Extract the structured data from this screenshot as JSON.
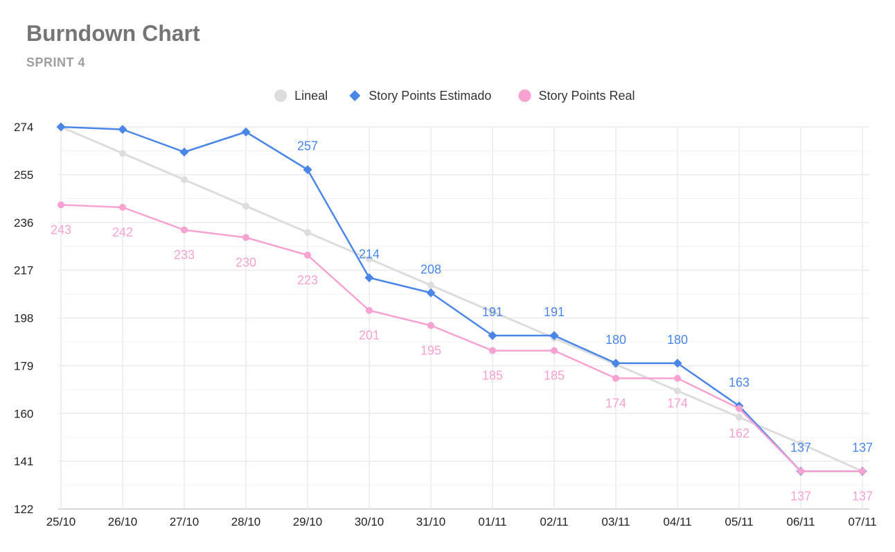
{
  "header": {
    "title": "Burndown Chart",
    "subtitle": "SPRINT 4"
  },
  "chart_data": {
    "type": "line",
    "title": "Burndown Chart",
    "subtitle": "SPRINT 4",
    "xlabel": "",
    "ylabel": "",
    "categories": [
      "25/10",
      "26/10",
      "27/10",
      "28/10",
      "29/10",
      "30/10",
      "31/10",
      "01/11",
      "02/11",
      "03/11",
      "04/11",
      "05/11",
      "06/11",
      "07/11"
    ],
    "ylim": [
      122,
      274
    ],
    "yticks": [
      122,
      141,
      160,
      179,
      198,
      217,
      236,
      255,
      274
    ],
    "grid": true,
    "legend": "top-center",
    "series": [
      {
        "name": "Lineal",
        "color": "#dddddd",
        "marker": "circle",
        "values": [
          274,
          263.5,
          253,
          242.5,
          232,
          221.5,
          211,
          200.5,
          190,
          179.5,
          169,
          158.5,
          148,
          137
        ],
        "labels_shown": false
      },
      {
        "name": "Story Points Estimado",
        "color": "#4a86e8",
        "marker": "diamond",
        "values": [
          274,
          273,
          264,
          272,
          257,
          214,
          208,
          191,
          191,
          180,
          180,
          163,
          137,
          137
        ],
        "labels_shown": true,
        "label_position": "above",
        "label_indices": [
          4,
          5,
          6,
          7,
          8,
          9,
          10,
          11,
          12,
          13
        ]
      },
      {
        "name": "Story Points Real",
        "color": "#f8a2d2",
        "marker": "circle",
        "values": [
          243,
          242,
          233,
          230,
          223,
          201,
          195,
          185,
          185,
          174,
          174,
          162,
          137,
          137
        ],
        "labels_shown": true,
        "label_position": "below",
        "label_indices": [
          0,
          1,
          2,
          3,
          4,
          5,
          6,
          7,
          8,
          9,
          10,
          11,
          12,
          13
        ]
      }
    ]
  }
}
